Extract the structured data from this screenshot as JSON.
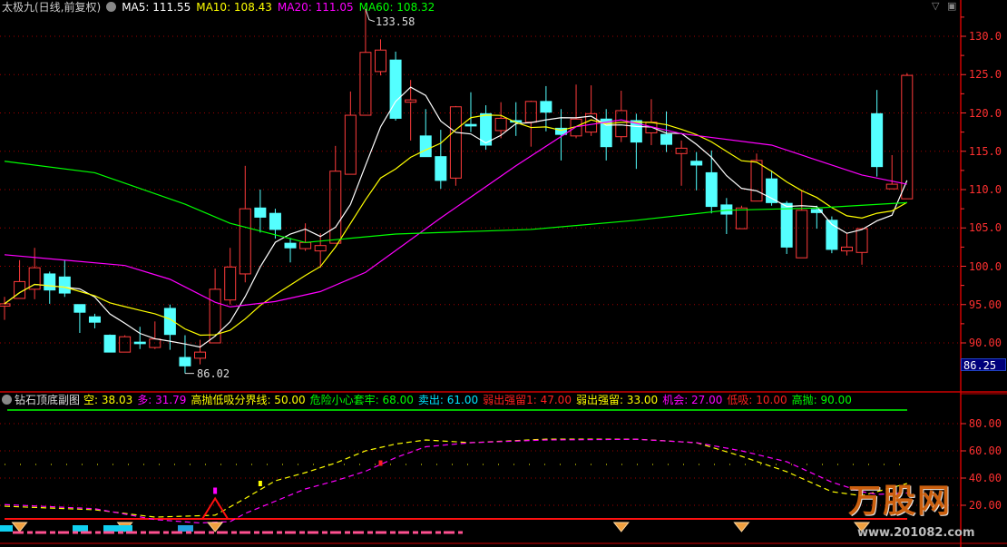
{
  "header": {
    "title": "太极九(日线,前复权)",
    "ma_labels": [
      {
        "text": "MA5: 111.55",
        "color": "#ffffff"
      },
      {
        "text": "MA10: 108.43",
        "color": "#ffff00"
      },
      {
        "text": "MA20: 111.05",
        "color": "#ff00ff"
      },
      {
        "text": "MA60: 108.32",
        "color": "#00ff00"
      }
    ],
    "icons": [
      "chevron-down-icon",
      "window-icon"
    ]
  },
  "indicator": {
    "title": "钻石顶底副图",
    "items": [
      {
        "text": "空: 38.03",
        "color": "#ffff00"
      },
      {
        "text": "多: 31.79",
        "color": "#ff00ff"
      },
      {
        "text": "高抛低吸分界线: 50.00",
        "color": "#ffff00"
      },
      {
        "text": "危险小心套牢: 68.00",
        "color": "#00ff00"
      },
      {
        "text": "卖出: 61.00",
        "color": "#00e5ff"
      },
      {
        "text": "弱出强留1: 47.00",
        "color": "#ff2020"
      },
      {
        "text": "弱出强留: 33.00",
        "color": "#ffff00"
      },
      {
        "text": "机会: 27.00",
        "color": "#ff00ff"
      },
      {
        "text": "低吸: 10.00",
        "color": "#ff2020"
      },
      {
        "text": "高抛: 90.00",
        "color": "#00ff00"
      }
    ]
  },
  "price_axis": {
    "ticks": [
      "130.0",
      "125.0",
      "120.0",
      "115.0",
      "110.0",
      "105.0",
      "100.0",
      "95.00",
      "90.00"
    ],
    "current": "86.25"
  },
  "indicator_axis": {
    "ticks": [
      "80.00",
      "60.00",
      "40.00",
      "20.00"
    ]
  },
  "annotations": {
    "high": "133.58",
    "low": "86.02"
  },
  "watermark": {
    "logo": "万股网",
    "url": "www.201082.com"
  },
  "colors": {
    "up": "#ff3b3b",
    "down": "#54ffff",
    "grid": "#a00000",
    "axis": "#ff3030"
  },
  "chart_data": [
    {
      "type": "candlestick",
      "ylim": [
        85,
        134
      ],
      "yticks": [
        90,
        95,
        100,
        105,
        110,
        115,
        120,
        125,
        130
      ],
      "grid": true,
      "candles": [
        [
          94.8,
          95.1,
          96.0,
          93.0
        ],
        [
          95.8,
          98.0,
          100.8,
          95.8
        ],
        [
          97.0,
          99.8,
          102.4,
          95.7
        ],
        [
          99.0,
          96.9,
          99.3,
          95.1
        ],
        [
          98.6,
          96.5,
          100.8,
          96.0
        ],
        [
          95.0,
          94.0,
          95.0,
          91.3
        ],
        [
          93.4,
          92.7,
          93.8,
          91.9
        ],
        [
          91.0,
          88.8,
          91.1,
          88.8
        ],
        [
          88.8,
          90.8,
          91.0,
          88.8
        ],
        [
          90.1,
          89.9,
          92.1,
          89.2
        ],
        [
          89.4,
          90.5,
          92.8,
          89.2
        ],
        [
          94.5,
          91.1,
          95.0,
          89.1
        ],
        [
          88.1,
          87.0,
          91.0,
          86.02
        ],
        [
          88.0,
          88.8,
          90.4,
          87.2
        ],
        [
          90.0,
          97.0,
          99.7,
          90.0
        ],
        [
          95.6,
          99.9,
          102.4,
          95.0
        ],
        [
          99.0,
          107.5,
          113.1,
          97.9
        ],
        [
          107.6,
          106.4,
          110.0,
          104.4
        ],
        [
          106.9,
          104.8,
          107.5,
          103.6
        ],
        [
          103.0,
          102.4,
          103.7,
          100.5
        ],
        [
          102.3,
          103.1,
          105.6,
          102.0
        ],
        [
          102.0,
          102.7,
          104.3,
          99.8
        ],
        [
          103.0,
          112.4,
          115.7,
          103.0
        ],
        [
          112.0,
          119.7,
          122.8,
          112.0
        ],
        [
          119.7,
          127.9,
          133.58,
          119.7
        ],
        [
          125.4,
          128.2,
          129.6,
          124.9
        ],
        [
          126.9,
          119.3,
          128.0,
          119.0
        ],
        [
          121.4,
          121.7,
          124.3,
          116.4
        ],
        [
          117.0,
          114.3,
          120.5,
          114.3
        ],
        [
          114.3,
          111.2,
          117.8,
          110.1
        ],
        [
          111.5,
          120.8,
          120.9,
          110.5
        ],
        [
          118.5,
          118.3,
          122.7,
          117.5
        ],
        [
          119.9,
          115.8,
          121.0,
          115.2
        ],
        [
          117.7,
          119.3,
          121.4,
          116.7
        ],
        [
          119.0,
          118.8,
          121.4,
          117.0
        ],
        [
          118.8,
          121.5,
          121.6,
          115.6
        ],
        [
          121.5,
          120.1,
          123.5,
          117.6
        ],
        [
          118.0,
          117.2,
          120.5,
          113.8
        ],
        [
          117.0,
          119.2,
          123.7,
          116.7
        ],
        [
          117.5,
          119.9,
          123.6,
          117.0
        ],
        [
          119.2,
          115.6,
          120.5,
          113.8
        ],
        [
          116.9,
          120.3,
          122.9,
          116.2
        ],
        [
          119.0,
          116.2,
          119.9,
          112.7
        ],
        [
          117.4,
          118.8,
          121.8,
          115.8
        ],
        [
          117.2,
          115.9,
          120.2,
          114.9
        ],
        [
          114.7,
          115.4,
          116.4,
          110.5
        ],
        [
          113.7,
          113.2,
          114.9,
          109.9
        ],
        [
          112.2,
          107.8,
          115.1,
          106.9
        ],
        [
          108.0,
          106.8,
          108.9,
          104.2
        ],
        [
          104.9,
          107.6,
          107.9,
          104.9
        ],
        [
          108.5,
          113.8,
          114.7,
          108.5
        ],
        [
          111.4,
          108.3,
          112.5,
          107.9
        ],
        [
          108.2,
          102.5,
          108.5,
          101.6
        ],
        [
          101.1,
          107.3,
          109.9,
          101.1
        ],
        [
          107.4,
          107.0,
          107.9,
          104.9
        ],
        [
          106.0,
          102.2,
          106.5,
          101.7
        ],
        [
          102.0,
          102.5,
          104.3,
          101.4
        ],
        [
          101.8,
          104.9,
          104.9,
          100.2
        ],
        [
          119.9,
          113.0,
          123.0,
          111.7
        ],
        [
          110.1,
          110.7,
          114.5,
          110.1
        ],
        [
          108.8,
          124.9,
          125.2,
          108.8
        ]
      ],
      "ma20": [
        [
          0,
          101.5
        ],
        [
          4,
          100.8
        ],
        [
          8,
          100.1
        ],
        [
          11,
          98.3
        ],
        [
          14,
          95.3
        ],
        [
          15,
          94.7
        ],
        [
          18,
          95.4
        ],
        [
          21,
          96.7
        ],
        [
          24,
          99.2
        ],
        [
          29,
          106.3
        ],
        [
          34,
          113.1
        ],
        [
          38,
          118.2
        ],
        [
          41,
          119.1
        ],
        [
          45,
          117.3
        ],
        [
          51,
          115.8
        ],
        [
          57,
          111.9
        ],
        [
          60,
          110.7
        ]
      ],
      "ma60": [
        [
          0,
          113.7
        ],
        [
          6,
          112.2
        ],
        [
          12,
          108.1
        ],
        [
          15,
          105.6
        ],
        [
          20,
          103.1
        ],
        [
          26,
          104.2
        ],
        [
          35,
          104.8
        ],
        [
          42,
          106.0
        ],
        [
          48,
          107.3
        ],
        [
          54,
          107.6
        ],
        [
          60,
          108.3
        ]
      ]
    },
    {
      "type": "line",
      "ylim": [
        0,
        90
      ],
      "yticks": [
        20,
        40,
        60,
        80
      ],
      "levels": {
        "high_sell": 90,
        "divide": 50,
        "low_buy": 10
      },
      "series": [
        {
          "name": "空",
          "color": "#ffff00",
          "points": [
            [
              0,
              19.3
            ],
            [
              6,
              16.7
            ],
            [
              10,
              11.3
            ],
            [
              14,
              12.7
            ],
            [
              16,
              25
            ],
            [
              18,
              38
            ],
            [
              20,
              44
            ],
            [
              22,
              51
            ],
            [
              24,
              60
            ],
            [
              26,
              65
            ],
            [
              28,
              68
            ],
            [
              31,
              66
            ],
            [
              36,
              68.6
            ],
            [
              42,
              68.6
            ],
            [
              46,
              66
            ],
            [
              49,
              56
            ],
            [
              52,
              44.7
            ],
            [
              55,
              30
            ],
            [
              57,
              27
            ],
            [
              58,
              30
            ],
            [
              60,
              36
            ]
          ]
        },
        {
          "name": "多",
          "color": "#ff00ff",
          "points": [
            [
              0,
              20.5
            ],
            [
              6,
              17.5
            ],
            [
              10,
              9.5
            ],
            [
              13,
              7
            ],
            [
              15,
              8
            ],
            [
              16,
              14
            ],
            [
              18,
              23
            ],
            [
              20,
              32
            ],
            [
              22,
              38
            ],
            [
              24,
              45
            ],
            [
              26,
              55
            ],
            [
              28,
              63
            ],
            [
              31,
              66
            ],
            [
              36,
              68
            ],
            [
              42,
              68.5
            ],
            [
              46,
              66
            ],
            [
              49,
              60
            ],
            [
              52,
              52
            ],
            [
              55,
              37
            ],
            [
              57,
              30
            ],
            [
              58,
              28
            ],
            [
              60,
              29
            ]
          ]
        }
      ],
      "signals": {
        "diamond_bars": [
          1,
          8,
          14,
          41,
          49,
          57
        ],
        "triangle_bar": 14
      }
    }
  ]
}
